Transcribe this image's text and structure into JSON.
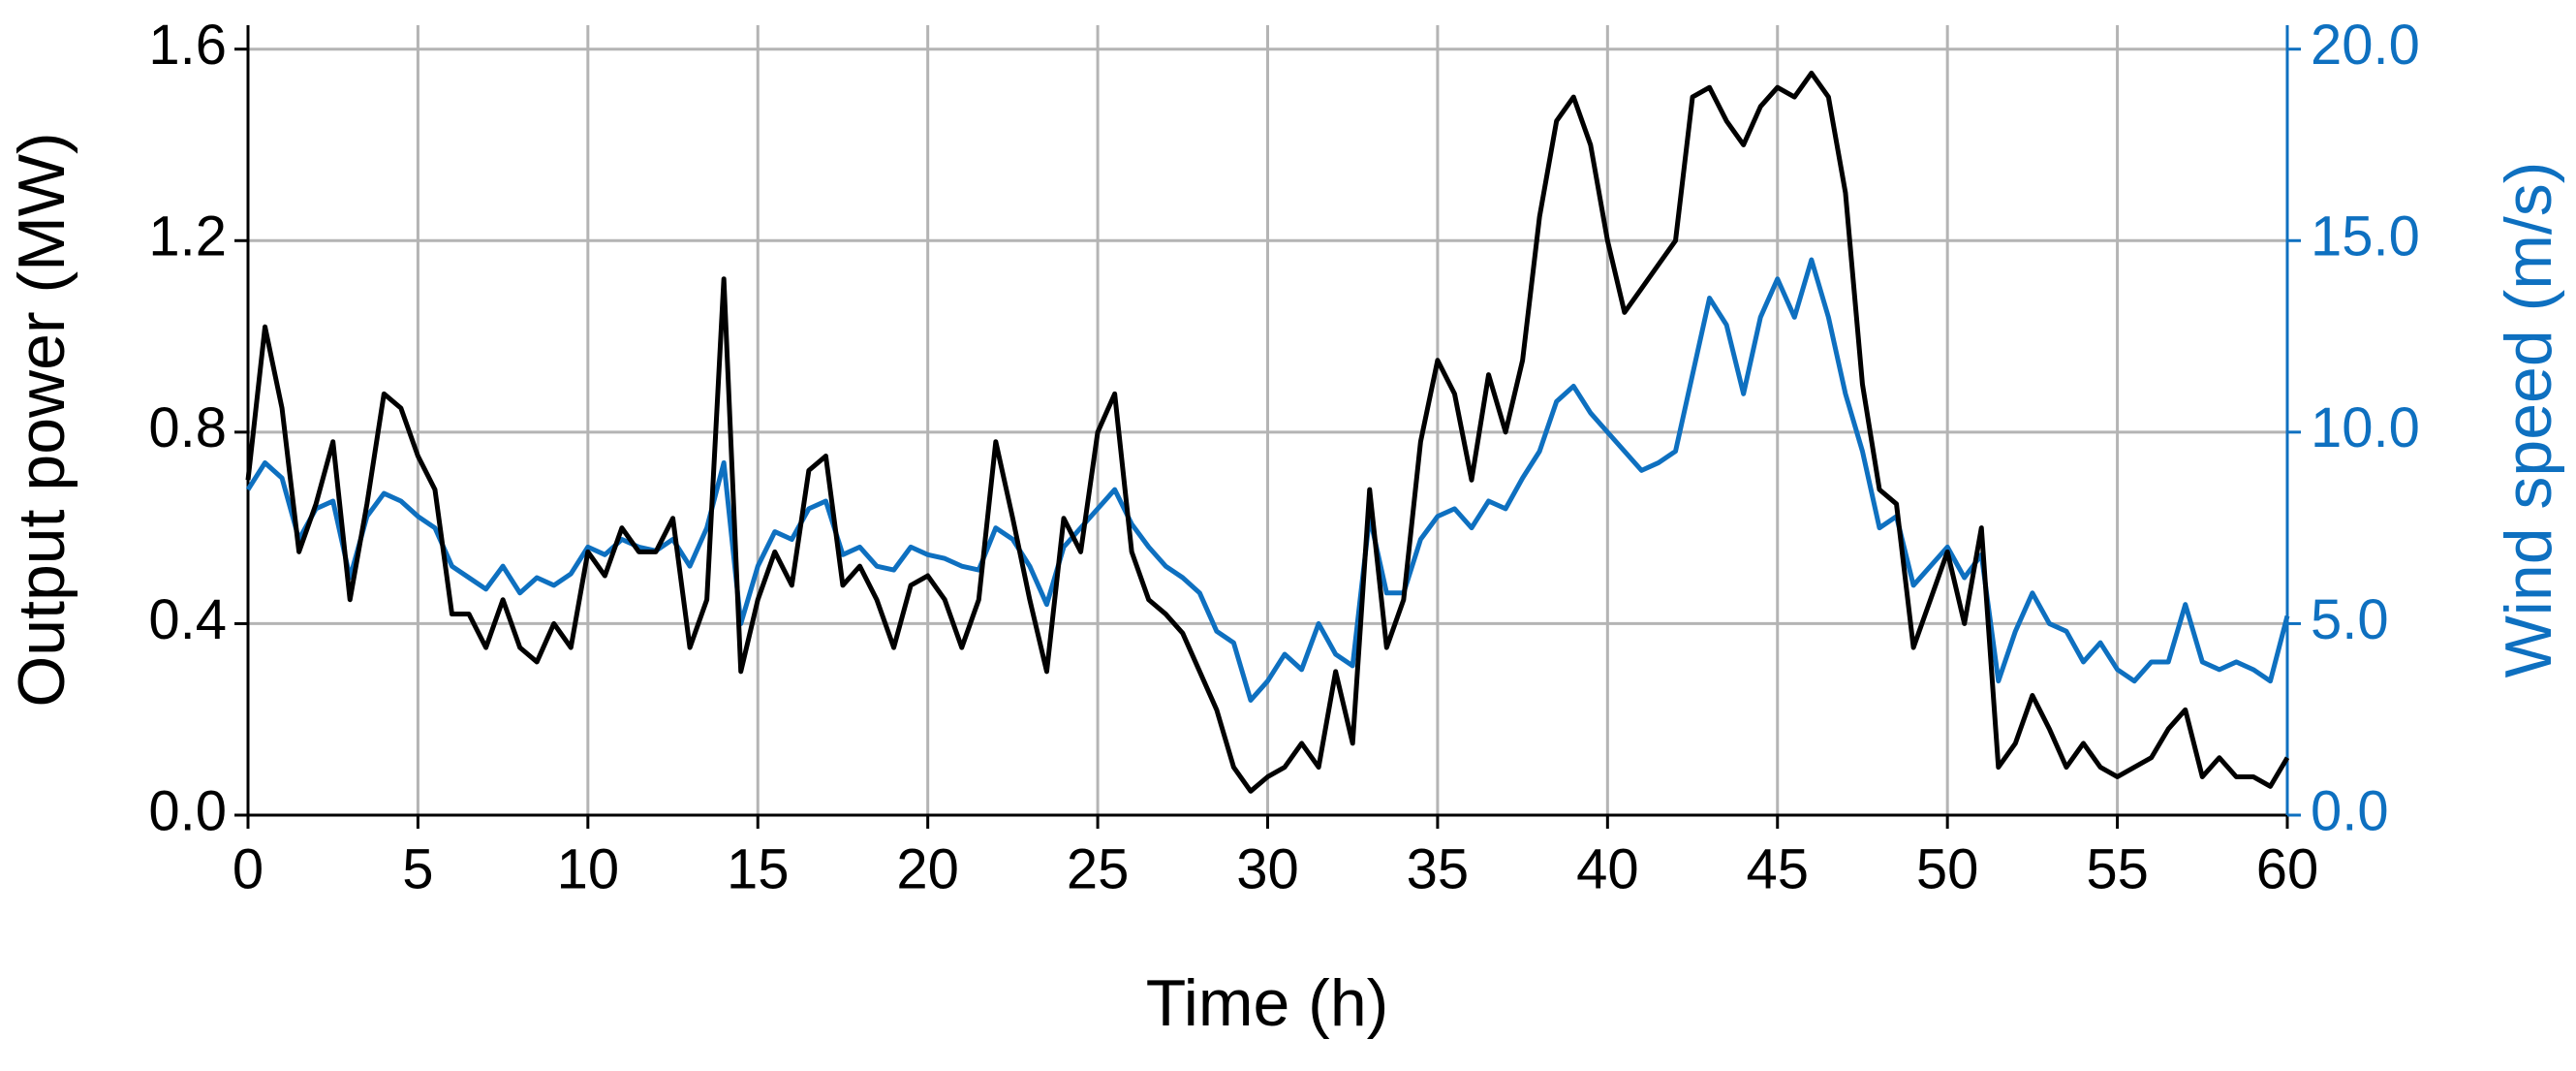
{
  "chart_data": {
    "type": "line",
    "xlabel": "Time (h)",
    "ylabel": "Output power (MW)",
    "y2label": "Wind speed (m/s)",
    "x": [
      0,
      0.5,
      1,
      1.5,
      2,
      2.5,
      3,
      3.5,
      4,
      4.5,
      5,
      5.5,
      6,
      6.5,
      7,
      7.5,
      8,
      8.5,
      9,
      9.5,
      10,
      10.5,
      11,
      11.5,
      12,
      12.5,
      13,
      13.5,
      14,
      14.5,
      15,
      15.5,
      16,
      16.5,
      17,
      17.5,
      18,
      18.5,
      19,
      19.5,
      20,
      20.5,
      21,
      21.5,
      22,
      22.5,
      23,
      23.5,
      24,
      24.5,
      25,
      25.5,
      26,
      26.5,
      27,
      27.5,
      28,
      28.5,
      29,
      29.5,
      30,
      30.5,
      31,
      31.5,
      32,
      32.5,
      33,
      33.5,
      34,
      34.5,
      35,
      35.5,
      36,
      36.5,
      37,
      37.5,
      38,
      38.5,
      39,
      39.5,
      40,
      40.5,
      41,
      41.5,
      42,
      42.5,
      43,
      43.5,
      44,
      44.5,
      45,
      45.5,
      46,
      46.5,
      47,
      47.5,
      48,
      48.5,
      49,
      49.5,
      50,
      50.5,
      51,
      51.5,
      52,
      52.5,
      53,
      53.5,
      54,
      54.5,
      55,
      55.5,
      56,
      56.5,
      57,
      57.5,
      58,
      58.5,
      59,
      59.5,
      60
    ],
    "series": [
      {
        "color": "#000000",
        "values": [
          0.7,
          1.02,
          0.85,
          0.55,
          0.65,
          0.78,
          0.45,
          0.65,
          0.88,
          0.85,
          0.75,
          0.68,
          0.42,
          0.42,
          0.35,
          0.45,
          0.35,
          0.32,
          0.4,
          0.35,
          0.55,
          0.5,
          0.6,
          0.55,
          0.55,
          0.62,
          0.35,
          0.45,
          1.12,
          0.3,
          0.45,
          0.55,
          0.48,
          0.72,
          0.75,
          0.48,
          0.52,
          0.45,
          0.35,
          0.48,
          0.5,
          0.45,
          0.35,
          0.45,
          0.78,
          0.62,
          0.45,
          0.3,
          0.62,
          0.55,
          0.8,
          0.88,
          0.55,
          0.45,
          0.42,
          0.38,
          0.3,
          0.22,
          0.1,
          0.05,
          0.08,
          0.1,
          0.15,
          0.1,
          0.3,
          0.15,
          0.68,
          0.35,
          0.45,
          0.78,
          0.95,
          0.88,
          0.7,
          0.92,
          0.8,
          0.95,
          1.25,
          1.45,
          1.5,
          1.4,
          1.2,
          1.05,
          1.1,
          1.15,
          1.2,
          1.5,
          1.52,
          1.45,
          1.4,
          1.48,
          1.52,
          1.5,
          1.55,
          1.5,
          1.3,
          0.9,
          0.68,
          0.65,
          0.35,
          0.45,
          0.55,
          0.4,
          0.6,
          0.1,
          0.15,
          0.25,
          0.18,
          0.1,
          0.15,
          0.1,
          0.08,
          0.1,
          0.12,
          0.18,
          0.22,
          0.08,
          0.12,
          0.08,
          0.08,
          0.06,
          0.12
        ]
      },
      {
        "color": "#0e70c0",
        "axis": "y2",
        "values": [
          8.5,
          9.2,
          8.8,
          7.2,
          8.0,
          8.2,
          6.2,
          7.8,
          8.4,
          8.2,
          7.8,
          7.5,
          6.5,
          6.2,
          5.9,
          6.5,
          5.8,
          6.2,
          6.0,
          6.3,
          7.0,
          6.8,
          7.2,
          7.0,
          6.9,
          7.2,
          6.5,
          7.5,
          9.2,
          5.0,
          6.5,
          7.4,
          7.2,
          8.0,
          8.2,
          6.8,
          7.0,
          6.5,
          6.4,
          7.0,
          6.8,
          6.7,
          6.5,
          6.4,
          7.5,
          7.2,
          6.5,
          5.5,
          7.0,
          7.5,
          8.0,
          8.5,
          7.6,
          7.0,
          6.5,
          6.2,
          5.8,
          4.8,
          4.5,
          3.0,
          3.5,
          4.2,
          3.8,
          5.0,
          4.2,
          3.9,
          7.8,
          5.8,
          5.8,
          7.2,
          7.8,
          8.0,
          7.5,
          8.2,
          8.0,
          8.8,
          9.5,
          10.8,
          11.2,
          10.5,
          10.0,
          9.5,
          9.0,
          9.2,
          9.5,
          11.5,
          13.5,
          12.8,
          11.0,
          13.0,
          14.0,
          13.0,
          14.5,
          13.0,
          11.0,
          9.5,
          7.5,
          7.8,
          6.0,
          6.5,
          7.0,
          6.2,
          6.8,
          3.5,
          4.8,
          5.8,
          5.0,
          4.8,
          4.0,
          4.5,
          3.8,
          3.5,
          4.0,
          4.0,
          5.5,
          4.0,
          3.8,
          4.0,
          3.8,
          3.5,
          5.2
        ]
      }
    ],
    "xlim": [
      0,
      60
    ],
    "xticks": [
      0,
      5,
      10,
      15,
      20,
      25,
      30,
      35,
      40,
      45,
      50,
      55,
      60
    ],
    "ylim": [
      0,
      1.65
    ],
    "yticks": [
      {
        "value": 0,
        "label": "0.0"
      },
      0.4,
      0.8,
      1.2,
      1.6
    ],
    "y2lim": [
      0,
      20.625
    ],
    "y2ticks": [
      {
        "value": 0,
        "label": "0.0"
      },
      {
        "value": 5,
        "label": "5.0"
      },
      {
        "value": 10,
        "label": "10.0"
      },
      {
        "value": 15,
        "label": "15.0"
      },
      {
        "value": 20,
        "label": "20.0"
      }
    ],
    "grid": true,
    "axis_color": "#000000",
    "y2_color": "#0e70c0",
    "grid_color": "#b4b4b4"
  }
}
